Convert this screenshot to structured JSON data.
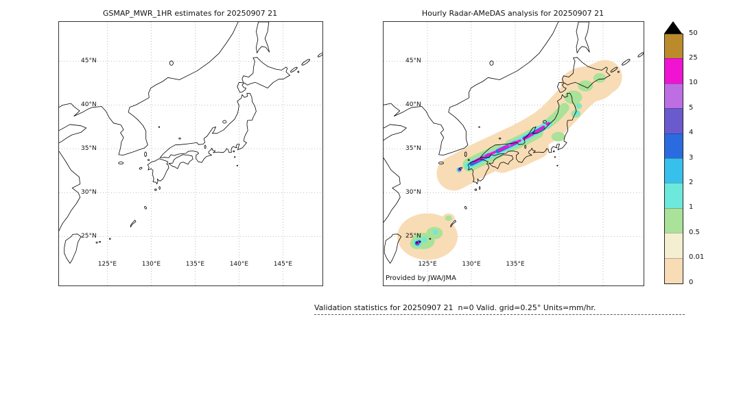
{
  "panels": {
    "left": {
      "title": "GSMAP_MWR_1HR estimates for 20250907 21",
      "lat_labels": [
        "45°N",
        "40°N",
        "35°N",
        "30°N",
        "25°N"
      ],
      "lon_labels": [
        "125°E",
        "130°E",
        "135°E",
        "140°E",
        "145°E"
      ]
    },
    "right": {
      "title": "Hourly Radar-AMeDAS analysis for 20250907 21",
      "lat_labels": [
        "45°N",
        "40°N",
        "35°N",
        "30°N",
        "25°N"
      ],
      "lon_labels": [
        "125°E",
        "130°E",
        "135°E"
      ],
      "credit": "Provided by JWA/JMA"
    }
  },
  "colorbar": {
    "labels": [
      "50",
      "25",
      "10",
      "5",
      "4",
      "3",
      "2",
      "1",
      "0.5",
      "0.01",
      "0"
    ],
    "segments": [
      {
        "top_value": "50",
        "color": "#bb8a2a"
      },
      {
        "top_value": "25",
        "color": "#f014d2"
      },
      {
        "top_value": "10",
        "color": "#bc6ee2"
      },
      {
        "top_value": "5",
        "color": "#6a5ace"
      },
      {
        "top_value": "4",
        "color": "#2a6be0"
      },
      {
        "top_value": "3",
        "color": "#38c0ec"
      },
      {
        "top_value": "2",
        "color": "#6de8dc"
      },
      {
        "top_value": "1",
        "color": "#a9e298"
      },
      {
        "top_value": "0.5",
        "color": "#f4efd0"
      },
      {
        "top_value": "0.01",
        "color": "#f8dcb6"
      }
    ],
    "overflow_color": "#000000",
    "units": "mm/hr"
  },
  "footer": {
    "text": "Validation statistics for 20250907 21  n=0 Valid. grid=0.25° Units=mm/hr."
  },
  "chart_data": {
    "type": "heatmap",
    "panels": [
      {
        "title": "GSMAP_MWR_1HR estimates for 20250907 21",
        "content": "no precipitation plotted (blank map of Japan region; n=0 valid grid points)"
      },
      {
        "title": "Hourly Radar-AMeDAS analysis for 20250907 21",
        "content": "SW-NE precipitation band from the East China Sea across Kyushu, western Honshu and Tohoku to southeast of Hokkaido; embedded frontal core of 5-25 mm/hr (violet-magenta) from about 130E,33.5N to 139E,38N; secondary rain cluster near the Sakishima/Okinawa islands around 124E,24.5N with cells reaching 10-25 mm/hr"
      }
    ],
    "levels_mm_per_hr": [
      0,
      0.01,
      0.5,
      1,
      2,
      3,
      4,
      5,
      10,
      25,
      50
    ],
    "level_colors_bottom_to_top": [
      "#f8dcb6",
      "#f4efd0",
      "#a9e298",
      "#6de8dc",
      "#38c0ec",
      "#2a6be0",
      "#6a5ace",
      "#bc6ee2",
      "#f014d2",
      "#bb8a2a"
    ],
    "overflow_color": "#000000",
    "units": "mm/hr",
    "x_ticks": [
      "125°E",
      "130°E",
      "135°E",
      "140°E",
      "145°E"
    ],
    "y_ticks": [
      "25°N",
      "30°N",
      "35°N",
      "40°N",
      "45°N"
    ],
    "grid": true,
    "legend_position": "right"
  }
}
